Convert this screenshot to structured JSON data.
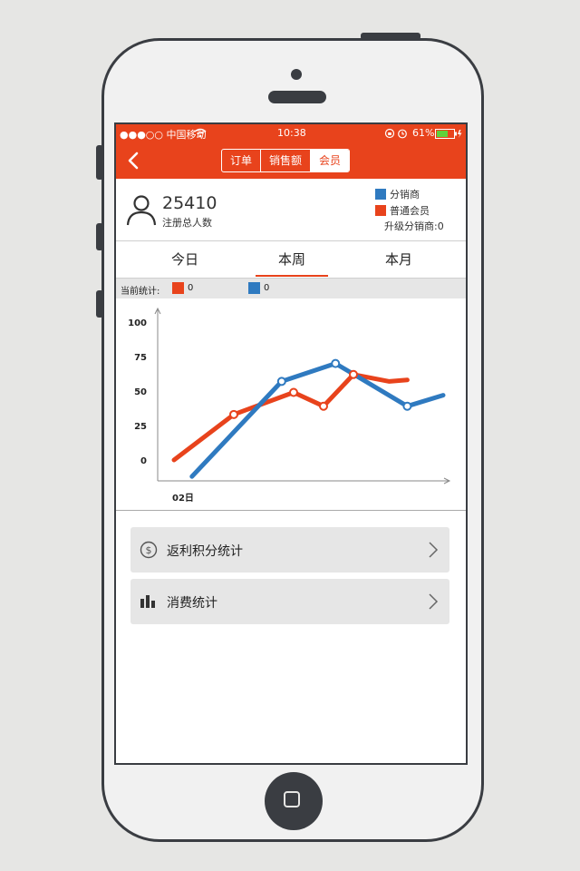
{
  "status": {
    "carrier": "●●●○○ 中国移动",
    "time": "10:38",
    "battery": "61%"
  },
  "nav": {
    "segments": [
      {
        "label": "订单"
      },
      {
        "label": "销售额"
      },
      {
        "label": "会员"
      }
    ],
    "active_index": 2
  },
  "summary": {
    "total": "25410",
    "total_label": "注册总人数",
    "upgrade": "升级分销商:0"
  },
  "legend": [
    {
      "label": "分销商",
      "color": "#2f7ac0"
    },
    {
      "label": "普通会员",
      "color": "#e8431c"
    }
  ],
  "tabs": [
    {
      "label": "今日"
    },
    {
      "label": "本周"
    },
    {
      "label": "本月"
    }
  ],
  "active_tab": 1,
  "stats": {
    "label": "当前统计:",
    "red_value": "0",
    "blue_value": "0"
  },
  "colors": {
    "accent": "#e8431c",
    "blue": "#2f7ac0"
  },
  "chart_data": {
    "type": "line",
    "x_label_first": "02日",
    "ylim": [
      -15,
      100
    ],
    "yticks": [
      "100",
      "75",
      "50",
      "25",
      "0"
    ],
    "series": [
      {
        "name": "普通会员",
        "color": "#e8431c",
        "points": [
          [
            0,
            0
          ],
          [
            1,
            33
          ],
          [
            2,
            49
          ],
          [
            2.5,
            39
          ],
          [
            3,
            62
          ],
          [
            3.6,
            57
          ],
          [
            3.9,
            58
          ]
        ],
        "markers": [
          1,
          2,
          3,
          4
        ]
      },
      {
        "name": "分销商",
        "color": "#2f7ac0",
        "points": [
          [
            0.3,
            -12
          ],
          [
            1.8,
            57
          ],
          [
            2.7,
            70
          ],
          [
            3.9,
            39
          ],
          [
            4.5,
            47
          ]
        ],
        "markers": [
          1,
          2,
          3
        ]
      }
    ]
  },
  "menu": [
    {
      "label": "返利积分统计",
      "icon": "dollar-icon"
    },
    {
      "label": "消费统计",
      "icon": "bar-chart-icon"
    }
  ]
}
